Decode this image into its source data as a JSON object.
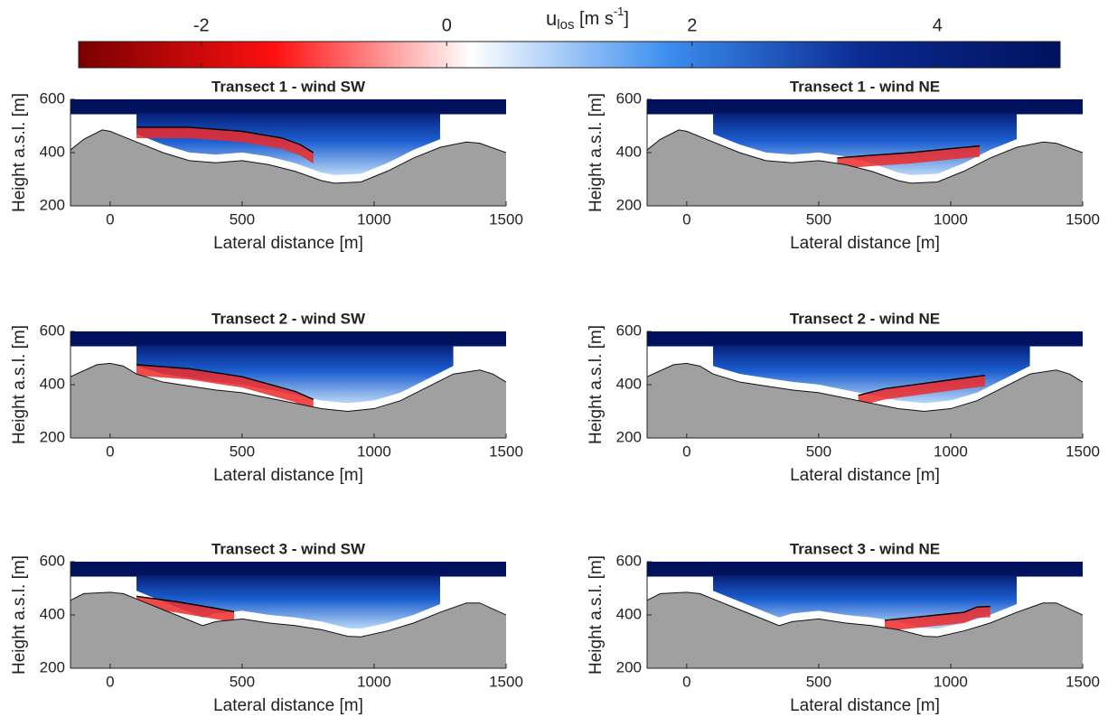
{
  "colorbar": {
    "label_main": "u",
    "label_sub": "los",
    "label_unit": " [m s",
    "label_exp": "-1",
    "label_close": "]",
    "clim": [
      -3,
      5
    ],
    "ticks": [
      -2,
      0,
      2,
      4
    ],
    "colormap": [
      "#7a0000",
      "#ff1010",
      "#ffffff",
      "#3c8ef0",
      "#0a2a90",
      "#00125e"
    ]
  },
  "chart_data": [
    {
      "type": "transect",
      "title": "Transect 1 - wind SW",
      "xlabel": "Lateral distance [m]",
      "ylabel": "Height a.s.l. [m]",
      "xlim": [
        -150,
        1500
      ],
      "ylim": [
        200,
        600
      ],
      "xticks": [
        0,
        500,
        1000,
        1500
      ],
      "yticks": [
        200,
        400,
        600
      ],
      "terrain_color": "#a0a0a0",
      "x": [
        -150,
        -100,
        -30,
        0,
        100,
        200,
        300,
        400,
        500,
        600,
        700,
        800,
        850,
        950,
        1050,
        1150,
        1250,
        1350,
        1400,
        1500
      ],
      "terrain": [
        410,
        450,
        485,
        480,
        440,
        400,
        370,
        362,
        370,
        355,
        330,
        295,
        285,
        290,
        330,
        380,
        420,
        440,
        435,
        400
      ],
      "contour_x": [
        100,
        300,
        500,
        650,
        720,
        770
      ],
      "contour_y": [
        495,
        495,
        480,
        455,
        430,
        400
      ]
    },
    {
      "type": "transect",
      "title": "Transect 1 - wind NE",
      "xlabel": "Lateral distance [m]",
      "ylabel": "Height a.s.l. [m]",
      "xlim": [
        -150,
        1500
      ],
      "ylim": [
        200,
        600
      ],
      "xticks": [
        0,
        500,
        1000,
        1500
      ],
      "yticks": [
        200,
        400,
        600
      ],
      "terrain_color": "#a0a0a0",
      "x": [
        -150,
        -100,
        -30,
        0,
        100,
        200,
        300,
        400,
        500,
        600,
        700,
        800,
        850,
        950,
        1050,
        1150,
        1250,
        1350,
        1400,
        1500
      ],
      "terrain": [
        410,
        450,
        485,
        480,
        440,
        400,
        370,
        362,
        370,
        355,
        330,
        295,
        285,
        290,
        330,
        380,
        420,
        440,
        435,
        400
      ],
      "contour_x": [
        570,
        700,
        850,
        1000,
        1110
      ],
      "contour_y": [
        380,
        390,
        400,
        415,
        425
      ]
    },
    {
      "type": "transect",
      "title": "Transect 2 - wind SW",
      "xlabel": "Lateral distance [m]",
      "ylabel": "Height a.s.l. [m]",
      "xlim": [
        -150,
        1500
      ],
      "ylim": [
        200,
        600
      ],
      "xticks": [
        0,
        500,
        1000,
        1500
      ],
      "yticks": [
        200,
        400,
        600
      ],
      "terrain_color": "#a0a0a0",
      "x": [
        -150,
        -50,
        0,
        50,
        100,
        200,
        300,
        400,
        500,
        600,
        700,
        800,
        900,
        1000,
        1100,
        1200,
        1300,
        1400,
        1450,
        1500
      ],
      "terrain": [
        430,
        475,
        480,
        470,
        440,
        410,
        395,
        380,
        370,
        350,
        330,
        310,
        300,
        310,
        340,
        390,
        440,
        455,
        440,
        410
      ],
      "contour_x": [
        100,
        300,
        500,
        700,
        770
      ],
      "contour_y": [
        475,
        460,
        430,
        375,
        345
      ]
    },
    {
      "type": "transect",
      "title": "Transect 2 - wind NE",
      "xlabel": "Lateral distance [m]",
      "ylabel": "Height a.s.l. [m]",
      "xlim": [
        -150,
        1500
      ],
      "ylim": [
        200,
        600
      ],
      "xticks": [
        0,
        500,
        1000,
        1500
      ],
      "yticks": [
        200,
        400,
        600
      ],
      "terrain_color": "#a0a0a0",
      "x": [
        -150,
        -50,
        0,
        50,
        100,
        200,
        300,
        400,
        500,
        600,
        700,
        800,
        900,
        1000,
        1100,
        1200,
        1300,
        1400,
        1450,
        1500
      ],
      "terrain": [
        430,
        475,
        480,
        470,
        440,
        410,
        395,
        380,
        370,
        350,
        330,
        310,
        300,
        310,
        340,
        390,
        440,
        455,
        440,
        410
      ],
      "contour_x": [
        650,
        750,
        900,
        1050,
        1130
      ],
      "contour_y": [
        360,
        385,
        405,
        425,
        435
      ]
    },
    {
      "type": "transect",
      "title": "Transect 3 - wind SW",
      "xlabel": "Lateral distance [m]",
      "ylabel": "Height a.s.l. [m]",
      "xlim": [
        -150,
        1500
      ],
      "ylim": [
        200,
        600
      ],
      "xticks": [
        0,
        500,
        1000,
        1500
      ],
      "yticks": [
        200,
        400,
        600
      ],
      "terrain_color": "#a0a0a0",
      "x": [
        -150,
        -100,
        0,
        50,
        100,
        200,
        300,
        350,
        400,
        500,
        600,
        700,
        800,
        900,
        950,
        1050,
        1150,
        1250,
        1350,
        1400,
        1500
      ],
      "terrain": [
        455,
        480,
        485,
        480,
        460,
        420,
        380,
        360,
        375,
        385,
        370,
        360,
        345,
        320,
        318,
        340,
        370,
        410,
        445,
        445,
        400
      ],
      "contour_x": [
        100,
        250,
        400,
        470
      ],
      "contour_y": [
        470,
        450,
        425,
        412
      ]
    },
    {
      "type": "transect",
      "title": "Transect 3 - wind NE",
      "xlabel": "Lateral distance [m]",
      "ylabel": "Height a.s.l. [m]",
      "xlim": [
        -150,
        1500
      ],
      "ylim": [
        200,
        600
      ],
      "xticks": [
        0,
        500,
        1000,
        1500
      ],
      "yticks": [
        200,
        400,
        600
      ],
      "terrain_color": "#a0a0a0",
      "x": [
        -150,
        -100,
        0,
        50,
        100,
        200,
        300,
        350,
        400,
        500,
        600,
        700,
        800,
        900,
        950,
        1050,
        1150,
        1250,
        1350,
        1400,
        1500
      ],
      "terrain": [
        455,
        480,
        485,
        480,
        460,
        420,
        380,
        360,
        375,
        385,
        370,
        360,
        345,
        320,
        318,
        340,
        370,
        410,
        445,
        445,
        400
      ],
      "contour_x": [
        750,
        850,
        950,
        1050,
        1100,
        1150
      ],
      "contour_y": [
        380,
        390,
        400,
        410,
        430,
        432
      ]
    }
  ]
}
